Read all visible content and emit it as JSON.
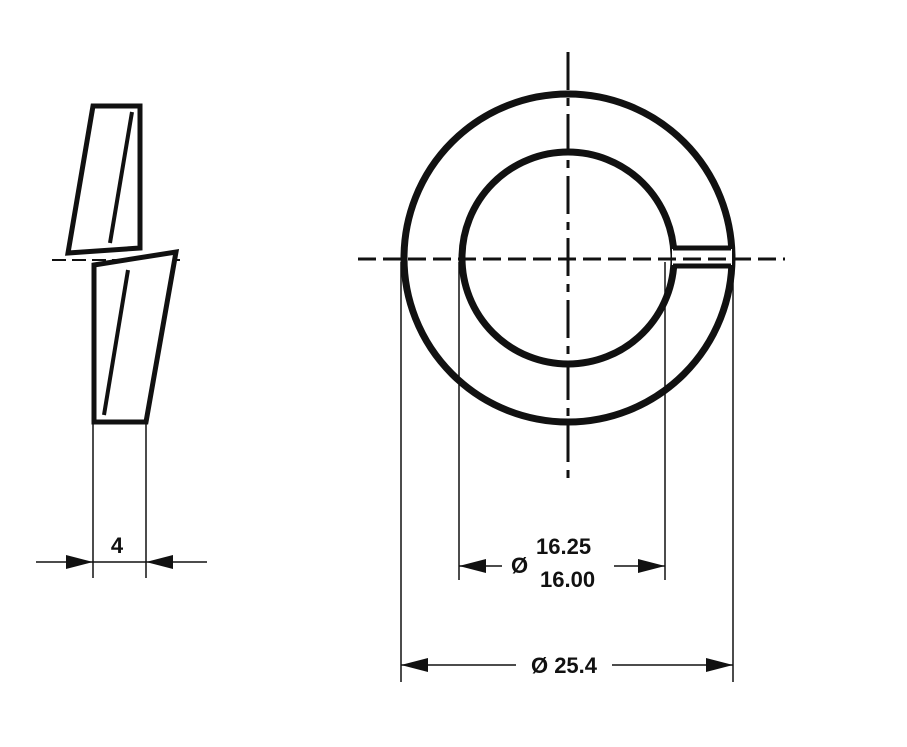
{
  "drawing": {
    "ink_color": "#111111",
    "background_color": "#ffffff",
    "side_view": {
      "thickness_label": "4"
    },
    "front_view": {
      "inner_diameter_symbol": "Ø",
      "inner_diameter_upper": "16.25",
      "inner_diameter_lower": "16.00",
      "outer_diameter_label": "Ø 25.4"
    }
  }
}
